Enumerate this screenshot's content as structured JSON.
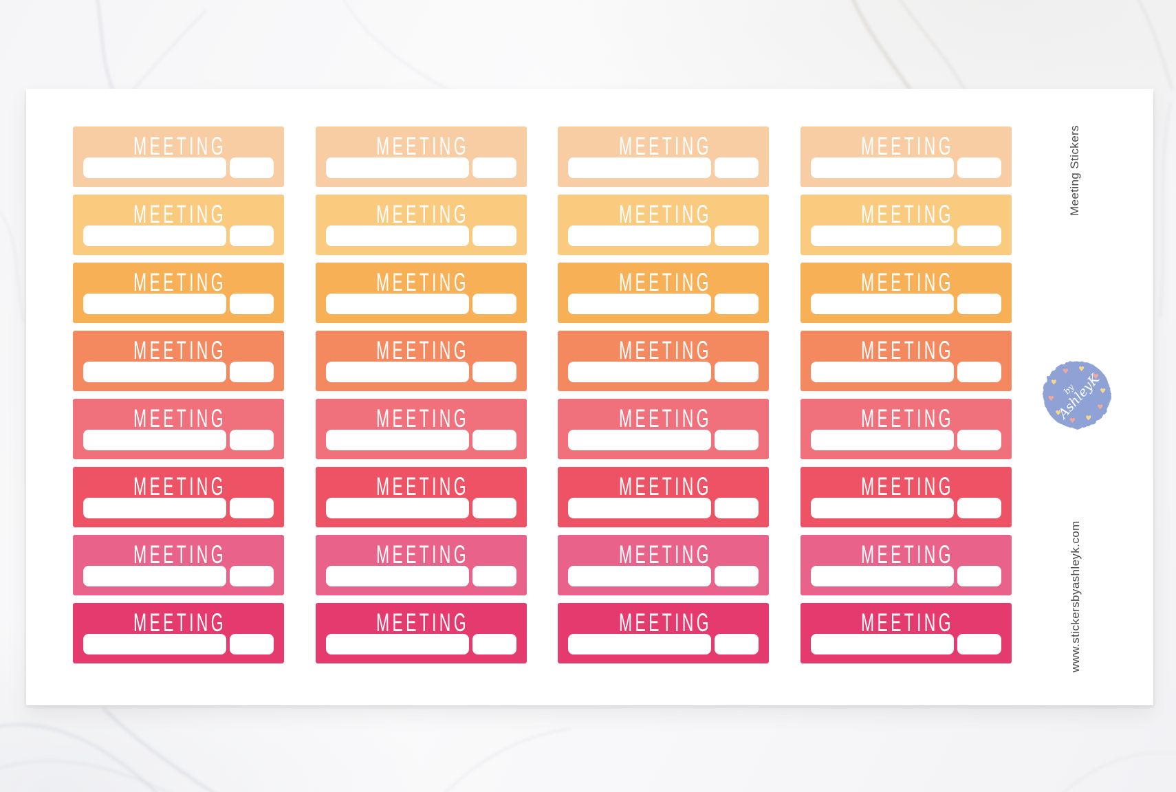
{
  "sheet": {
    "stickers": {
      "label": "MEETING",
      "columns": 4,
      "row_colors": [
        "#F8CDA3",
        "#FACA7E",
        "#F7B055",
        "#F4895F",
        "#F0707C",
        "#EE5365",
        "#E9628A",
        "#E53A6E"
      ]
    },
    "side": {
      "title": "Meeting Stickers",
      "url": "www.stickersbyashleyk.com"
    },
    "logo": {
      "text_line1": "by",
      "text_line2": "AshleyK",
      "circle_color": "#8FA2D6",
      "heart_colors": [
        "#F6D78C",
        "#F2A79E"
      ],
      "text_color": "#FFFFFF"
    }
  }
}
